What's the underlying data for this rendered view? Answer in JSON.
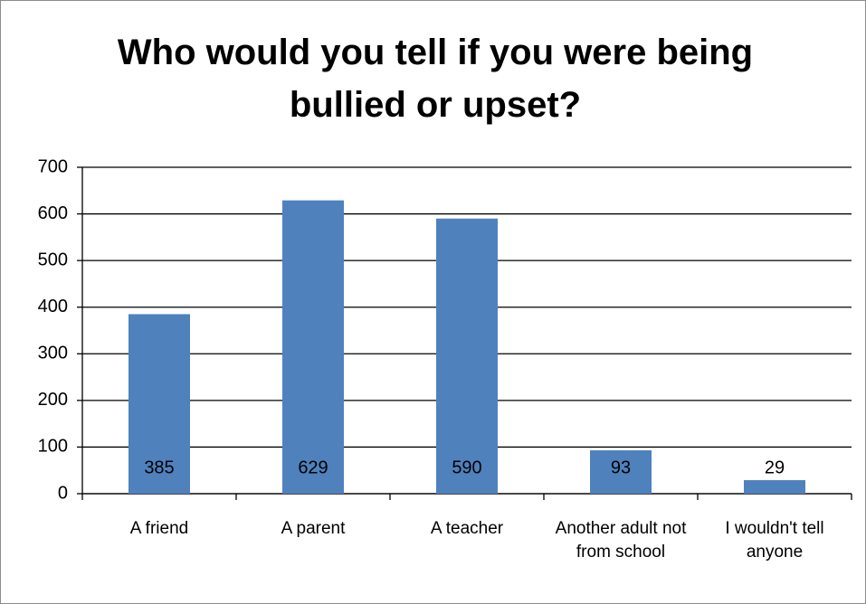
{
  "chart_data": {
    "type": "bar",
    "title": "Who would you tell if you were being bullied or upset?",
    "categories": [
      "A friend",
      "A parent",
      "A teacher",
      "Another adult not from school",
      "I wouldn't tell anyone"
    ],
    "values": [
      385,
      629,
      590,
      93,
      29
    ],
    "color": "#4f81bd",
    "ylim": [
      0,
      700
    ],
    "yticks": [
      0,
      100,
      200,
      300,
      400,
      500,
      600,
      700
    ],
    "grid": true
  }
}
